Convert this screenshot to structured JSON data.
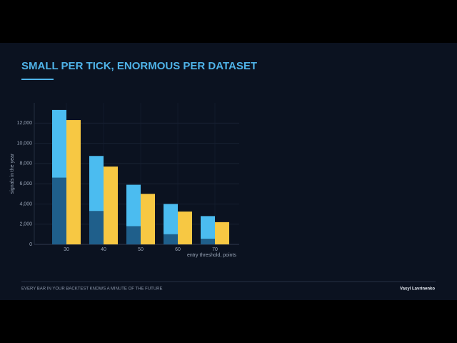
{
  "slide": {
    "title": "SMALL PER TICK, ENORMOUS PER DATASET",
    "footer": "EVERY BAR IN YOUR BACKTEST KNOWS A MINUTE OF THE FUTURE",
    "author": "Vasyl Lavrinenko"
  },
  "chart_data": {
    "type": "bar",
    "categories": [
      "30",
      "40",
      "50",
      "60",
      "70"
    ],
    "series": [
      {
        "color": "#1f5f8b",
        "values": [
          6600,
          3300,
          1800,
          1000,
          550
        ],
        "stack": "a"
      },
      {
        "color": "#4bbcf0",
        "values": [
          6700,
          5450,
          4100,
          3000,
          2250
        ],
        "stack": "a"
      },
      {
        "color": "#f7c843",
        "values": [
          12300,
          7700,
          5000,
          3250,
          2200
        ],
        "stack": "b"
      }
    ],
    "ylabel": "signals in the year",
    "xlabel": "entry threshold, points",
    "ylim": [
      0,
      14000
    ],
    "yticks": [
      0,
      {
        "value": 2000,
        "label": "2,000"
      },
      {
        "value": 4000,
        "label": "4,000"
      },
      {
        "value": 6000,
        "label": "6,000"
      },
      {
        "value": 8000,
        "label": "8,000"
      },
      {
        "value": 10000,
        "label": "10,000"
      },
      {
        "value": 12000,
        "label": "12,000"
      }
    ],
    "grid": true
  }
}
